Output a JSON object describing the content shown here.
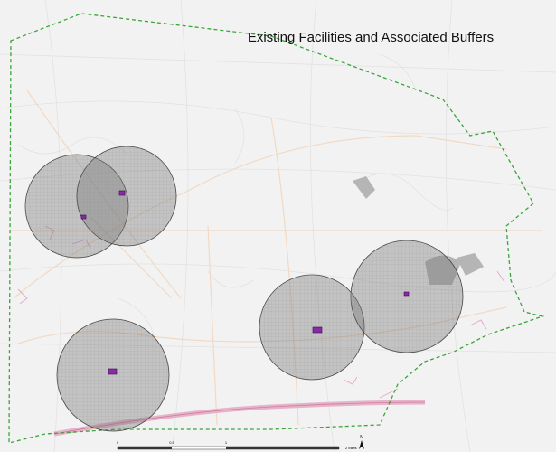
{
  "title": "Existing Facilities and Associated Buffers",
  "scale_bar": {
    "labels": [
      "0",
      "0.5",
      "1",
      "2 Miles"
    ]
  },
  "north_arrow": "N"
}
